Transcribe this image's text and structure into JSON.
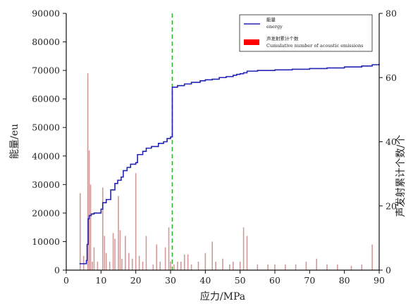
{
  "chart_data": {
    "type": "line",
    "xlabel": "应力/MPa",
    "ylabel_left": "能量/eu",
    "ylabel_right": "声发射累计个数/个",
    "xlim": [
      0,
      90
    ],
    "ylim_left": [
      0,
      90000
    ],
    "ylim_right": [
      0,
      80
    ],
    "x_ticks": [
      "0",
      "10",
      "20",
      "30",
      "40",
      "50",
      "60",
      "70",
      "80",
      "90"
    ],
    "y_left_ticks": [
      "0",
      "10000",
      "20000",
      "30000",
      "40000",
      "50000",
      "60000",
      "70000",
      "80000",
      "90000"
    ],
    "y_right_ticks": [
      "0",
      "20",
      "40",
      "60",
      "80"
    ],
    "vline_x": 30.5,
    "legend": {
      "position": "top-right",
      "line_label_cn": "能量",
      "line_label_en": "energy",
      "bar_label_cn": "声发射累计个数",
      "bar_label_en": "Cumulative number of acoustic emissions"
    },
    "colors": {
      "line": "#2323b4",
      "bars": "#c98a8a",
      "legend_bar": "#ff0000",
      "vline": "#2fb52f"
    },
    "series": [
      {
        "name": "energy",
        "axis": "right",
        "x": [
          3.8,
          5.8,
          6.0,
          6.3,
          6.6,
          7.2,
          8.0,
          10.0,
          10.5,
          11.5,
          12.8,
          14.0,
          14.8,
          15.8,
          16.4,
          17.5,
          18.5,
          20.0,
          20.5,
          22.0,
          23.0,
          24.5,
          26.5,
          28.0,
          29.0,
          30.0,
          30.5,
          32.0,
          34.0,
          36.0,
          38.5,
          40.0,
          42.0,
          44.0,
          46.0,
          48.0,
          49.0,
          50.0,
          51.0,
          52.0,
          55.0,
          60.0,
          65.0,
          70.0,
          75.0,
          80.0,
          85.0,
          88.0,
          90.0
        ],
        "y": [
          2,
          3,
          8,
          16,
          17,
          17.5,
          17.8,
          19,
          21,
          22,
          25,
          27,
          28,
          29,
          31,
          32,
          33,
          33.5,
          36,
          37,
          38,
          38.5,
          39.5,
          40,
          41,
          41.5,
          57,
          57.5,
          58,
          58.5,
          59,
          59.3,
          59.5,
          60,
          60.3,
          60.7,
          61,
          61.2,
          61.5,
          62,
          62.2,
          62.4,
          62.6,
          62.8,
          63,
          63.3,
          63.6,
          64,
          64.3
        ]
      },
      {
        "name": "Cumulative number of acoustic emissions",
        "axis": "left",
        "x": [
          4.0,
          5.0,
          6.2,
          6.6,
          7.0,
          7.5,
          8.0,
          9.0,
          10.5,
          11.0,
          11.5,
          12.5,
          13.5,
          14.0,
          15.0,
          15.5,
          16.0,
          17.0,
          18.0,
          19.0,
          20.0,
          21.0,
          22.0,
          23.0,
          25.0,
          26.0,
          27.0,
          28.5,
          29.5,
          30.0,
          31.0,
          32.0,
          33.0,
          34.0,
          35.0,
          36.0,
          38.0,
          40.0,
          42.0,
          43.0,
          45.0,
          47.0,
          48.0,
          50.0,
          51.0,
          52.0,
          55.0,
          58.0,
          60.0,
          63.0,
          66.0,
          69.0,
          72.0,
          75.0,
          78.0,
          82.0,
          85.0,
          88.0
        ],
        "y": [
          27000,
          5000,
          69000,
          42000,
          30000,
          3000,
          8000,
          3000,
          29000,
          12000,
          6000,
          3000,
          13000,
          11000,
          26000,
          14000,
          4000,
          12000,
          6000,
          4000,
          34000,
          5000,
          3000,
          12000,
          2000,
          9000,
          3000,
          8000,
          15000,
          3000,
          2000,
          3000,
          3000,
          5500,
          5500,
          2000,
          3000,
          6000,
          10000,
          3000,
          4000,
          2000,
          3000,
          3000,
          15000,
          12000,
          2000,
          2000,
          2000,
          2000,
          2000,
          3000,
          4000,
          2000,
          2000,
          1500,
          2000,
          9000
        ]
      }
    ]
  }
}
